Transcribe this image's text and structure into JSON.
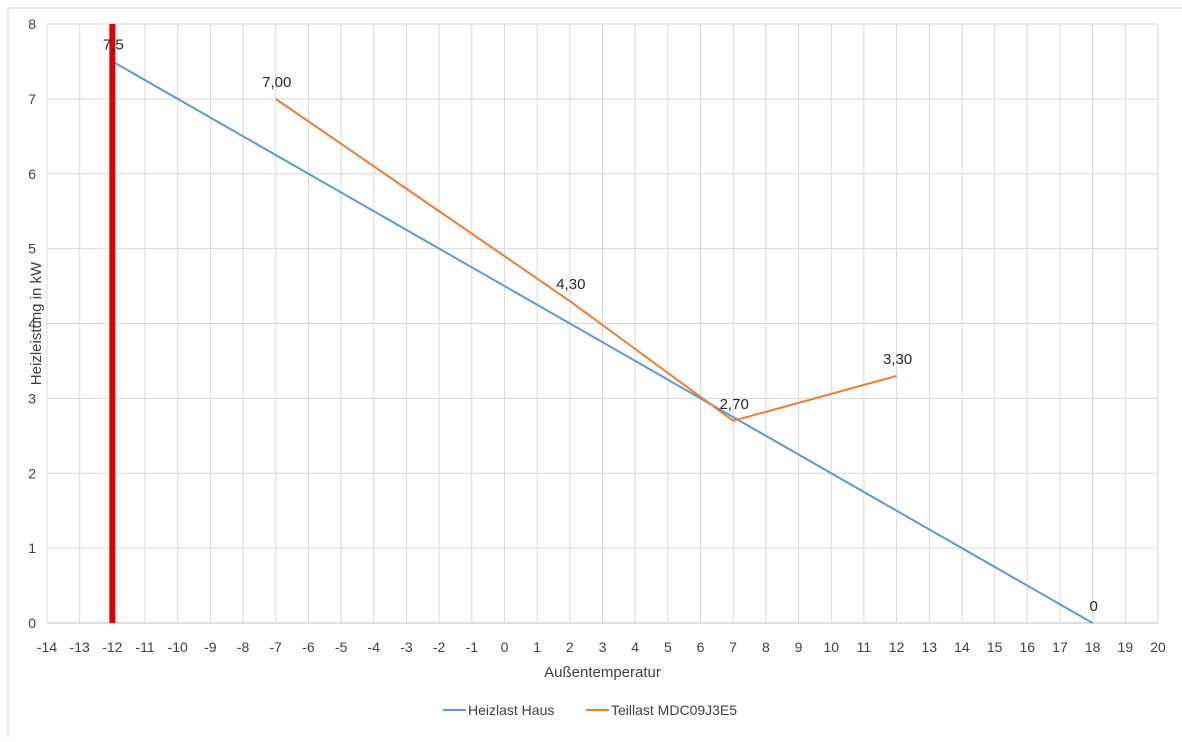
{
  "chart_data": {
    "type": "line",
    "title": "",
    "xlabel": "Außentemperatur",
    "ylabel": "Heizleistung in kW",
    "xlim": [
      -14,
      20
    ],
    "ylim": [
      0,
      8
    ],
    "x_ticks": [
      "-14",
      "-13",
      "-12",
      "-11",
      "-10",
      "-9",
      "-8",
      "-7",
      "-6",
      "-5",
      "-4",
      "-3",
      "-2",
      "-1",
      "0",
      "1",
      "2",
      "3",
      "4",
      "5",
      "6",
      "7",
      "8",
      "9",
      "10",
      "11",
      "12",
      "13",
      "14",
      "15",
      "16",
      "17",
      "18",
      "19",
      "20"
    ],
    "y_ticks": [
      "0",
      "1",
      "2",
      "3",
      "4",
      "5",
      "6",
      "7",
      "8"
    ],
    "grid": true,
    "legend_position": "bottom",
    "series": [
      {
        "name": "Heizlast Haus",
        "color": "#5B9BD5",
        "points": [
          [
            -12,
            7.5
          ],
          [
            18,
            0
          ]
        ],
        "labels": [
          {
            "x": -12,
            "y": 7.5,
            "text": "7,5"
          },
          {
            "x": 18,
            "y": 0,
            "text": "0"
          }
        ]
      },
      {
        "name": "Teillast MDC09J3E5",
        "color": "#ED7D31",
        "points": [
          [
            -7,
            7.0
          ],
          [
            2,
            4.3
          ],
          [
            7,
            2.7
          ],
          [
            12,
            3.3
          ]
        ],
        "labels": [
          {
            "x": -7,
            "y": 7.0,
            "text": "7,00"
          },
          {
            "x": 2,
            "y": 4.3,
            "text": "4,30"
          },
          {
            "x": 7,
            "y": 2.7,
            "text": "2,70"
          },
          {
            "x": 12,
            "y": 3.3,
            "text": "3,30"
          }
        ]
      }
    ],
    "marker_line": {
      "x": -12,
      "color": "#E00000"
    }
  }
}
